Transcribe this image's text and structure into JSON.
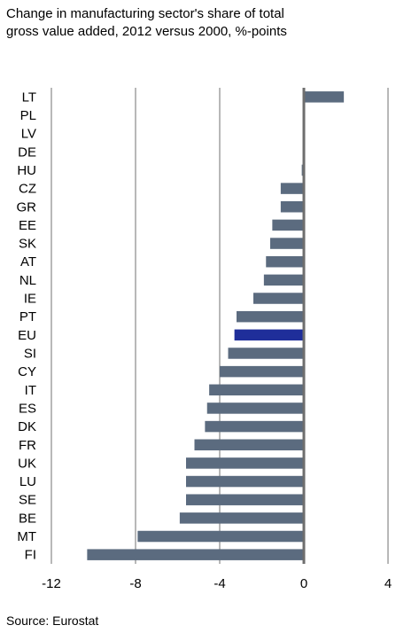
{
  "title": "Change in manufacturing sector's share of total\ngross value added, 2012 versus 2000, %-points",
  "source": "Source: Eurostat",
  "chart_data": {
    "type": "bar",
    "orientation": "horizontal",
    "title": "Change in manufacturing sector's share of total gross value added, 2012 versus 2000, %-points",
    "xlabel": "",
    "ylabel": "",
    "xlim": [
      -12,
      4
    ],
    "xticks": [
      "-12",
      "-8",
      "-4",
      "0",
      "4"
    ],
    "grid": true,
    "categories": [
      "LT",
      "PL",
      "LV",
      "DE",
      "HU",
      "CZ",
      "GR",
      "EE",
      "SK",
      "AT",
      "NL",
      "IE",
      "PT",
      "EU",
      "SI",
      "CY",
      "IT",
      "ES",
      "DK",
      "FR",
      "UK",
      "LU",
      "SE",
      "BE",
      "MT",
      "FI"
    ],
    "values": [
      1.9,
      0.0,
      0.0,
      0.0,
      -0.1,
      -1.1,
      -1.1,
      -1.5,
      -1.6,
      -1.8,
      -1.9,
      -2.4,
      -3.2,
      -3.3,
      -3.6,
      -4.0,
      -4.5,
      -4.6,
      -4.7,
      -5.2,
      -5.6,
      -5.6,
      -5.6,
      -5.9,
      -7.9,
      -10.3
    ],
    "highlight": "EU",
    "colors": {
      "bar": "#5b6b7f",
      "highlight": "#1f2e9a",
      "gridline": "#707070",
      "zero_line": "#6e6e6e"
    }
  }
}
